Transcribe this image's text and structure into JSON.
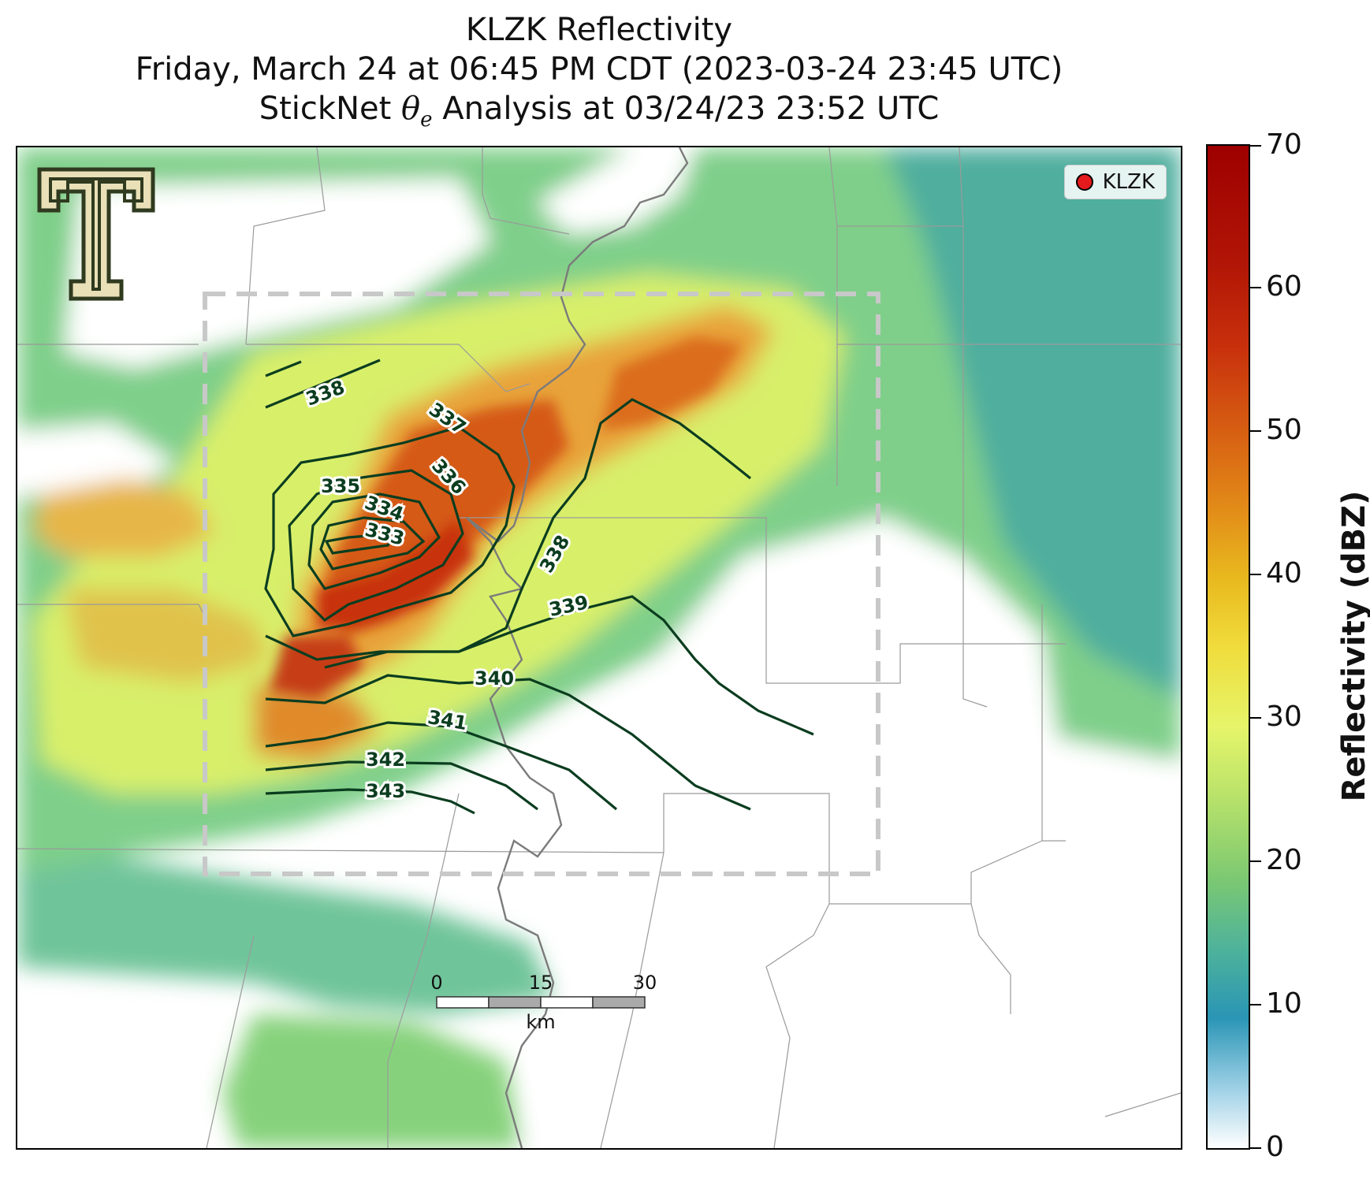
{
  "title": {
    "line1": "KLZK Reflectivity",
    "line2": "Friday, March 24 at 06:45 PM CDT (2023-03-24 23:45 UTC)",
    "line3_prefix": "StickNet ",
    "line3_symbol": "θ",
    "line3_sub": "e",
    "line3_suffix": " Analysis at 03/24/23 23:52 UTC"
  },
  "legend": {
    "label": "KLZK"
  },
  "colorbar": {
    "label": "Reflectivity (dBZ)",
    "ticks": [
      "0",
      "10",
      "20",
      "30",
      "40",
      "50",
      "60",
      "70"
    ],
    "range": [
      0,
      70
    ]
  },
  "scalebar": {
    "labels": [
      "0",
      "15",
      "30"
    ],
    "unit": "km"
  },
  "contours": {
    "color": "#0b3d1f",
    "labels": [
      "338",
      "337",
      "336",
      "335",
      "334",
      "333",
      "338",
      "339",
      "340",
      "341",
      "342",
      "343"
    ]
  },
  "logo": {
    "name": "texas-tech-double-t-logo"
  }
}
